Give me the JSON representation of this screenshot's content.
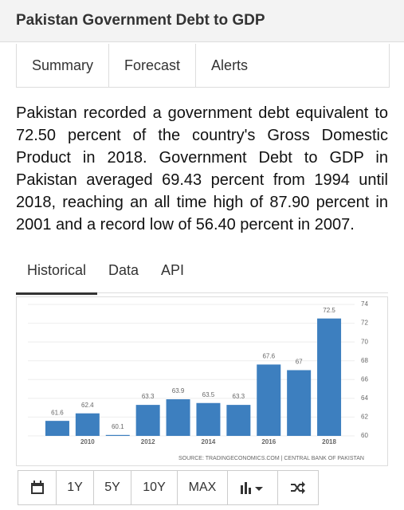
{
  "header": {
    "title": "Pakistan Government Debt to GDP"
  },
  "tabs": [
    "Summary",
    "Forecast",
    "Alerts"
  ],
  "summary": "Pakistan recorded a government debt equivalent to 72.50 percent of the country's Gross Domestic Product in 2018. Government Debt to GDP in Pakistan averaged 69.43 percent from 1994 until 2018, reaching an all time high of 87.90 percent in 2001 and a record low of 56.40 percent in 2007.",
  "chart_tabs": [
    "Historical",
    "Data",
    "API"
  ],
  "chart_data": {
    "type": "bar",
    "categories": [
      null,
      "2010",
      null,
      "2012",
      null,
      "2014",
      null,
      "2016",
      null,
      "2018"
    ],
    "values": [
      61.6,
      62.4,
      60.1,
      63.3,
      63.9,
      63.5,
      63.3,
      67.6,
      67,
      72.5
    ],
    "color": "#3d7fbf",
    "ylim": [
      60,
      74
    ],
    "yticks": [
      60,
      62,
      64,
      66,
      68,
      70,
      72,
      74
    ],
    "grid": true,
    "source": "SOURCE: TRADINGECONOMICS.COM | CENTRAL BANK OF PAKISTAN"
  },
  "range_buttons": [
    "1Y",
    "5Y",
    "10Y",
    "MAX"
  ]
}
